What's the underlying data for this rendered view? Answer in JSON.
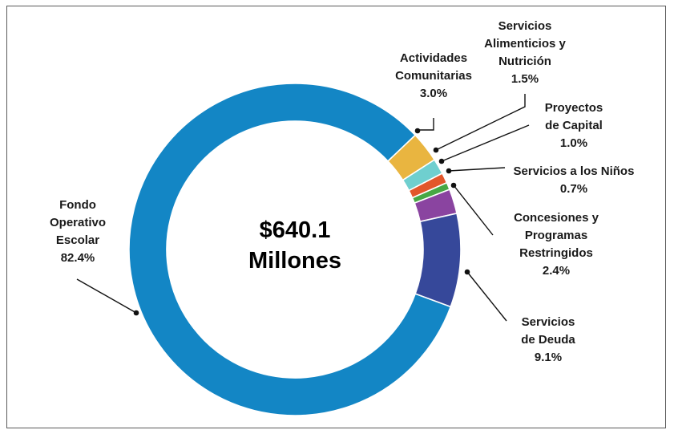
{
  "chart_data": {
    "type": "pie",
    "variant": "donut",
    "center_label": [
      "$640.1",
      "Millones"
    ],
    "slices": [
      {
        "name": "Fondo Operativo Escolar",
        "label_lines": [
          "Fondo",
          "Operativo",
          "Escolar"
        ],
        "value": 82.4,
        "value_label": "82.4%",
        "color": "#1386c5"
      },
      {
        "name": "Actividades Comunitarias",
        "label_lines": [
          "Actividades",
          "Comunitarias"
        ],
        "value": 3.0,
        "value_label": "3.0%",
        "color": "#e9b540"
      },
      {
        "name": "Servicios Alimenticios y Nutrición",
        "label_lines": [
          "Servicios",
          "Alimenticios y",
          "Nutrición"
        ],
        "value": 1.5,
        "value_label": "1.5%",
        "color": "#6fcfcf"
      },
      {
        "name": "Proyectos de Capital",
        "label_lines": [
          "Proyectos",
          "de Capital"
        ],
        "value": 1.0,
        "value_label": "1.0%",
        "color": "#e2572b"
      },
      {
        "name": "Servicios a los Niños",
        "label_lines": [
          "Servicios a los Niños"
        ],
        "value": 0.7,
        "value_label": "0.7%",
        "color": "#47a844"
      },
      {
        "name": "Concesiones y Programas Restringidos",
        "label_lines": [
          "Concesiones y",
          "Programas",
          "Restringidos"
        ],
        "value": 2.4,
        "value_label": "2.4%",
        "color": "#8a44a0"
      },
      {
        "name": "Servicios de Deuda",
        "label_lines": [
          "Servicios",
          "de Deuda"
        ],
        "value": 9.1,
        "value_label": "9.1%",
        "color": "#36489a"
      }
    ],
    "start_slice": "Fondo Operativo Escolar"
  }
}
